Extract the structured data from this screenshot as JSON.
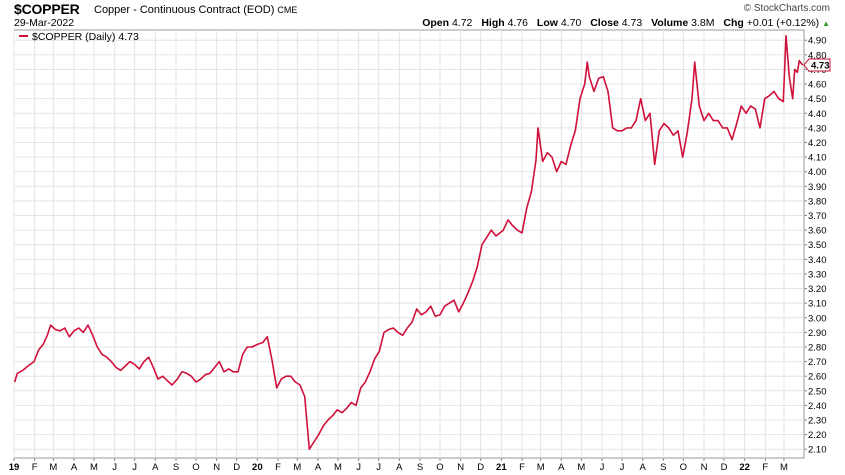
{
  "header": {
    "symbol": "$COPPER",
    "description": "Copper - Continuous Contract (EOD)",
    "exchange": "CME",
    "date": "29-Mar-2022",
    "brand": "© StockCharts.com",
    "open_label": "Open",
    "open": "4.72",
    "high_label": "High",
    "high": "4.76",
    "low_label": "Low",
    "low": "4.70",
    "close_label": "Close",
    "close": "4.73",
    "volume_label": "Volume",
    "volume": "3.8M",
    "chg_label": "Chg",
    "chg": "+0.01 (+0.12%)",
    "chg_direction": "up-triangle-icon"
  },
  "legend": {
    "label": "$COPPER (Daily) 4.73"
  },
  "last_value_tag": "4.73",
  "colors": {
    "line": "#d0103a",
    "grid": "#e4e4e4",
    "up": "#2a9a2a"
  },
  "chart_data": {
    "type": "line",
    "title": "$COPPER",
    "series": [
      {
        "name": "$COPPER (Daily)",
        "points": [
          [
            "2019-01-02",
            2.56
          ],
          [
            "2019-01-06",
            2.62
          ],
          [
            "2019-01-14",
            2.64
          ],
          [
            "2019-01-22",
            2.67
          ],
          [
            "2019-01-31",
            2.7
          ],
          [
            "2019-02-07",
            2.78
          ],
          [
            "2019-02-14",
            2.82
          ],
          [
            "2019-02-20",
            2.88
          ],
          [
            "2019-02-25",
            2.95
          ],
          [
            "2019-03-04",
            2.92
          ],
          [
            "2019-03-11",
            2.91
          ],
          [
            "2019-03-18",
            2.93
          ],
          [
            "2019-03-25",
            2.87
          ],
          [
            "2019-04-01",
            2.91
          ],
          [
            "2019-04-08",
            2.93
          ],
          [
            "2019-04-15",
            2.9
          ],
          [
            "2019-04-22",
            2.95
          ],
          [
            "2019-04-29",
            2.88
          ],
          [
            "2019-05-06",
            2.8
          ],
          [
            "2019-05-13",
            2.75
          ],
          [
            "2019-05-20",
            2.73
          ],
          [
            "2019-05-27",
            2.7
          ],
          [
            "2019-06-03",
            2.66
          ],
          [
            "2019-06-10",
            2.64
          ],
          [
            "2019-06-17",
            2.67
          ],
          [
            "2019-06-24",
            2.7
          ],
          [
            "2019-07-01",
            2.68
          ],
          [
            "2019-07-08",
            2.65
          ],
          [
            "2019-07-15",
            2.7
          ],
          [
            "2019-07-22",
            2.73
          ],
          [
            "2019-07-29",
            2.66
          ],
          [
            "2019-08-05",
            2.58
          ],
          [
            "2019-08-12",
            2.6
          ],
          [
            "2019-08-19",
            2.57
          ],
          [
            "2019-08-26",
            2.54
          ],
          [
            "2019-09-03",
            2.58
          ],
          [
            "2019-09-10",
            2.63
          ],
          [
            "2019-09-17",
            2.62
          ],
          [
            "2019-09-24",
            2.6
          ],
          [
            "2019-10-01",
            2.56
          ],
          [
            "2019-10-08",
            2.58
          ],
          [
            "2019-10-15",
            2.61
          ],
          [
            "2019-10-22",
            2.62
          ],
          [
            "2019-10-29",
            2.66
          ],
          [
            "2019-11-05",
            2.7
          ],
          [
            "2019-11-12",
            2.63
          ],
          [
            "2019-11-19",
            2.65
          ],
          [
            "2019-11-26",
            2.63
          ],
          [
            "2019-12-03",
            2.63
          ],
          [
            "2019-12-10",
            2.75
          ],
          [
            "2019-12-17",
            2.8
          ],
          [
            "2019-12-24",
            2.8
          ],
          [
            "2020-01-02",
            2.82
          ],
          [
            "2020-01-09",
            2.83
          ],
          [
            "2020-01-16",
            2.87
          ],
          [
            "2020-01-23",
            2.71
          ],
          [
            "2020-01-30",
            2.52
          ],
          [
            "2020-02-06",
            2.58
          ],
          [
            "2020-02-13",
            2.6
          ],
          [
            "2020-02-20",
            2.6
          ],
          [
            "2020-02-27",
            2.56
          ],
          [
            "2020-03-05",
            2.54
          ],
          [
            "2020-03-12",
            2.46
          ],
          [
            "2020-03-19",
            2.1
          ],
          [
            "2020-03-26",
            2.15
          ],
          [
            "2020-04-02",
            2.2
          ],
          [
            "2020-04-09",
            2.26
          ],
          [
            "2020-04-16",
            2.3
          ],
          [
            "2020-04-23",
            2.33
          ],
          [
            "2020-04-30",
            2.37
          ],
          [
            "2020-05-07",
            2.35
          ],
          [
            "2020-05-14",
            2.38
          ],
          [
            "2020-05-21",
            2.42
          ],
          [
            "2020-05-28",
            2.4
          ],
          [
            "2020-06-04",
            2.52
          ],
          [
            "2020-06-11",
            2.56
          ],
          [
            "2020-06-18",
            2.63
          ],
          [
            "2020-06-25",
            2.72
          ],
          [
            "2020-07-02",
            2.77
          ],
          [
            "2020-07-09",
            2.9
          ],
          [
            "2020-07-16",
            2.92
          ],
          [
            "2020-07-23",
            2.93
          ],
          [
            "2020-07-30",
            2.9
          ],
          [
            "2020-08-06",
            2.88
          ],
          [
            "2020-08-13",
            2.93
          ],
          [
            "2020-08-20",
            2.97
          ],
          [
            "2020-08-27",
            3.06
          ],
          [
            "2020-09-03",
            3.02
          ],
          [
            "2020-09-10",
            3.04
          ],
          [
            "2020-09-17",
            3.08
          ],
          [
            "2020-09-24",
            3.01
          ],
          [
            "2020-10-01",
            3.02
          ],
          [
            "2020-10-08",
            3.08
          ],
          [
            "2020-10-15",
            3.1
          ],
          [
            "2020-10-22",
            3.12
          ],
          [
            "2020-10-29",
            3.04
          ],
          [
            "2020-11-05",
            3.1
          ],
          [
            "2020-11-12",
            3.17
          ],
          [
            "2020-11-19",
            3.25
          ],
          [
            "2020-11-26",
            3.35
          ],
          [
            "2020-12-03",
            3.5
          ],
          [
            "2020-12-10",
            3.55
          ],
          [
            "2020-12-17",
            3.6
          ],
          [
            "2020-12-24",
            3.56
          ],
          [
            "2021-01-04",
            3.6
          ],
          [
            "2021-01-11",
            3.67
          ],
          [
            "2021-01-18",
            3.63
          ],
          [
            "2021-01-25",
            3.6
          ],
          [
            "2021-02-01",
            3.58
          ],
          [
            "2021-02-08",
            3.75
          ],
          [
            "2021-02-15",
            3.86
          ],
          [
            "2021-02-22",
            4.08
          ],
          [
            "2021-02-25",
            4.3
          ],
          [
            "2021-03-04",
            4.07
          ],
          [
            "2021-03-11",
            4.13
          ],
          [
            "2021-03-18",
            4.1
          ],
          [
            "2021-03-25",
            4.0
          ],
          [
            "2021-04-01",
            4.07
          ],
          [
            "2021-04-08",
            4.05
          ],
          [
            "2021-04-15",
            4.18
          ],
          [
            "2021-04-22",
            4.28
          ],
          [
            "2021-04-29",
            4.5
          ],
          [
            "2021-05-06",
            4.6
          ],
          [
            "2021-05-10",
            4.75
          ],
          [
            "2021-05-13",
            4.65
          ],
          [
            "2021-05-20",
            4.55
          ],
          [
            "2021-05-27",
            4.64
          ],
          [
            "2021-06-03",
            4.65
          ],
          [
            "2021-06-10",
            4.55
          ],
          [
            "2021-06-17",
            4.3
          ],
          [
            "2021-06-24",
            4.28
          ],
          [
            "2021-07-01",
            4.28
          ],
          [
            "2021-07-08",
            4.3
          ],
          [
            "2021-07-15",
            4.3
          ],
          [
            "2021-07-22",
            4.35
          ],
          [
            "2021-07-29",
            4.5
          ],
          [
            "2021-08-05",
            4.35
          ],
          [
            "2021-08-12",
            4.4
          ],
          [
            "2021-08-19",
            4.05
          ],
          [
            "2021-08-26",
            4.28
          ],
          [
            "2021-09-02",
            4.33
          ],
          [
            "2021-09-09",
            4.3
          ],
          [
            "2021-09-16",
            4.25
          ],
          [
            "2021-09-23",
            4.28
          ],
          [
            "2021-09-30",
            4.1
          ],
          [
            "2021-10-07",
            4.27
          ],
          [
            "2021-10-14",
            4.5
          ],
          [
            "2021-10-18",
            4.75
          ],
          [
            "2021-10-25",
            4.45
          ],
          [
            "2021-11-01",
            4.35
          ],
          [
            "2021-11-08",
            4.4
          ],
          [
            "2021-11-15",
            4.35
          ],
          [
            "2021-11-22",
            4.35
          ],
          [
            "2021-11-29",
            4.3
          ],
          [
            "2021-12-06",
            4.3
          ],
          [
            "2021-12-13",
            4.22
          ],
          [
            "2021-12-20",
            4.33
          ],
          [
            "2021-12-27",
            4.45
          ],
          [
            "2022-01-03",
            4.4
          ],
          [
            "2022-01-10",
            4.45
          ],
          [
            "2022-01-17",
            4.43
          ],
          [
            "2022-01-24",
            4.3
          ],
          [
            "2022-01-31",
            4.5
          ],
          [
            "2022-02-07",
            4.52
          ],
          [
            "2022-02-14",
            4.55
          ],
          [
            "2022-02-21",
            4.5
          ],
          [
            "2022-02-28",
            4.48
          ],
          [
            "2022-03-04",
            4.93
          ],
          [
            "2022-03-09",
            4.65
          ],
          [
            "2022-03-14",
            4.5
          ],
          [
            "2022-03-17",
            4.7
          ],
          [
            "2022-03-21",
            4.68
          ],
          [
            "2022-03-24",
            4.76
          ],
          [
            "2022-03-29",
            4.73
          ]
        ]
      }
    ],
    "x_ticks": [
      {
        "label": "19",
        "date": "2019-01-01",
        "bold": true
      },
      {
        "label": "F",
        "date": "2019-02-01"
      },
      {
        "label": "M",
        "date": "2019-03-01"
      },
      {
        "label": "A",
        "date": "2019-04-01"
      },
      {
        "label": "M",
        "date": "2019-05-01"
      },
      {
        "label": "J",
        "date": "2019-06-01"
      },
      {
        "label": "J",
        "date": "2019-07-01"
      },
      {
        "label": "A",
        "date": "2019-08-01"
      },
      {
        "label": "S",
        "date": "2019-09-01"
      },
      {
        "label": "O",
        "date": "2019-10-01"
      },
      {
        "label": "N",
        "date": "2019-11-01"
      },
      {
        "label": "D",
        "date": "2019-12-01"
      },
      {
        "label": "20",
        "date": "2020-01-01",
        "bold": true
      },
      {
        "label": "F",
        "date": "2020-02-01"
      },
      {
        "label": "M",
        "date": "2020-03-01"
      },
      {
        "label": "A",
        "date": "2020-04-01"
      },
      {
        "label": "M",
        "date": "2020-05-01"
      },
      {
        "label": "J",
        "date": "2020-06-01"
      },
      {
        "label": "J",
        "date": "2020-07-01"
      },
      {
        "label": "A",
        "date": "2020-08-01"
      },
      {
        "label": "S",
        "date": "2020-09-01"
      },
      {
        "label": "O",
        "date": "2020-10-01"
      },
      {
        "label": "N",
        "date": "2020-11-01"
      },
      {
        "label": "D",
        "date": "2020-12-01"
      },
      {
        "label": "21",
        "date": "2021-01-01",
        "bold": true
      },
      {
        "label": "F",
        "date": "2021-02-01"
      },
      {
        "label": "M",
        "date": "2021-03-01"
      },
      {
        "label": "A",
        "date": "2021-04-01"
      },
      {
        "label": "M",
        "date": "2021-05-01"
      },
      {
        "label": "J",
        "date": "2021-06-01"
      },
      {
        "label": "J",
        "date": "2021-07-01"
      },
      {
        "label": "A",
        "date": "2021-08-01"
      },
      {
        "label": "S",
        "date": "2021-09-01"
      },
      {
        "label": "O",
        "date": "2021-10-01"
      },
      {
        "label": "N",
        "date": "2021-11-01"
      },
      {
        "label": "D",
        "date": "2021-12-01"
      },
      {
        "label": "22",
        "date": "2022-01-01",
        "bold": true
      },
      {
        "label": "F",
        "date": "2022-02-01"
      },
      {
        "label": "M",
        "date": "2022-03-01"
      }
    ],
    "y_ticks": [
      "2.10",
      "2.20",
      "2.30",
      "2.40",
      "2.50",
      "2.60",
      "2.70",
      "2.80",
      "2.90",
      "3.00",
      "3.10",
      "3.20",
      "3.30",
      "3.40",
      "3.50",
      "3.60",
      "3.70",
      "3.80",
      "3.90",
      "4.00",
      "4.10",
      "4.20",
      "4.30",
      "4.40",
      "4.50",
      "4.60",
      "4.70",
      "4.80",
      "4.90"
    ],
    "xlim": [
      "2019-01-01",
      "2022-03-31"
    ],
    "ylim": [
      2.04,
      4.97
    ],
    "grid": true,
    "y_axis_side": "right",
    "legend_position": "top-left"
  }
}
